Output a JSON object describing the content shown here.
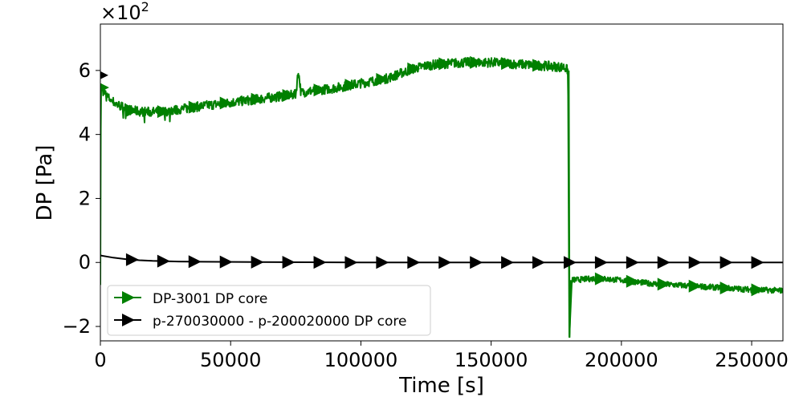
{
  "chart_data": {
    "type": "line",
    "title": "",
    "xlabel": "Time [s]",
    "ylabel": "DP [Pa]",
    "y_multiplier": "×10",
    "y_multiplier_exp": "2",
    "xlim": [
      0,
      262000
    ],
    "ylim": [
      -2.45,
      7.45
    ],
    "x_ticks": [
      0,
      50000,
      100000,
      150000,
      200000,
      250000
    ],
    "x_tick_labels": [
      "0",
      "50000",
      "100000",
      "150000",
      "200000",
      "250000"
    ],
    "y_ticks": [
      -2,
      0,
      2,
      4,
      6
    ],
    "y_tick_labels": [
      "−2",
      "0",
      "2",
      "4",
      "6"
    ],
    "grid": false,
    "legend_position": "lower-left",
    "series": [
      {
        "name": "DP-3001 DP core",
        "color": "#008000",
        "marker": "right-triangle",
        "x": [
          0,
          200,
          800,
          3000,
          6000,
          9000,
          12000,
          15000,
          20000,
          25000,
          30000,
          40000,
          50000,
          60000,
          70000,
          75000,
          76000,
          77000,
          80000,
          90000,
          100000,
          110000,
          115000,
          120000,
          125000,
          130000,
          140000,
          150000,
          160000,
          170000,
          178000,
          179500,
          180000,
          181000,
          190000,
          200000,
          210000,
          220000,
          230000,
          240000,
          250000,
          262000
        ],
        "y": [
          -0.7,
          5.6,
          5.4,
          5.15,
          4.95,
          4.85,
          4.75,
          4.72,
          4.7,
          4.72,
          4.78,
          4.9,
          5.0,
          5.1,
          5.2,
          5.25,
          6.0,
          5.3,
          5.35,
          5.45,
          5.6,
          5.75,
          5.9,
          6.05,
          6.15,
          6.2,
          6.25,
          6.25,
          6.2,
          6.15,
          6.1,
          6.0,
          -2.35,
          -0.55,
          -0.5,
          -0.55,
          -0.65,
          -0.7,
          -0.75,
          -0.8,
          -0.85,
          -0.88
        ],
        "noise_band": 0.15
      },
      {
        "name": "p-270030000 - p-200020000 DP core",
        "color": "#000000",
        "marker": "right-triangle",
        "x": [
          0,
          5000,
          10000,
          15000,
          20000,
          30000,
          40000,
          60000,
          80000,
          100000,
          150000,
          180000,
          200000,
          262000
        ],
        "y": [
          0.22,
          0.15,
          0.1,
          0.07,
          0.05,
          0.03,
          0.02,
          0.01,
          0.005,
          0.0,
          0.0,
          0.0,
          0.0,
          0.0
        ],
        "marker_x": [
          12000,
          24000,
          36000,
          48000,
          60000,
          72000,
          84000,
          96000,
          108000,
          120000,
          132000,
          144000,
          156000,
          168000,
          180000,
          192000,
          204000,
          216000,
          228000,
          240000,
          252000
        ]
      }
    ],
    "green_marker_x": [
      600,
      12000,
      24000,
      36000,
      48000,
      60000,
      72000,
      84000,
      96000,
      108000,
      120000,
      132000,
      144000,
      156000,
      168000,
      192000,
      204000,
      216000,
      228000,
      240000,
      252000
    ],
    "black_start_marker": {
      "x": 600,
      "y": 5.85
    }
  }
}
